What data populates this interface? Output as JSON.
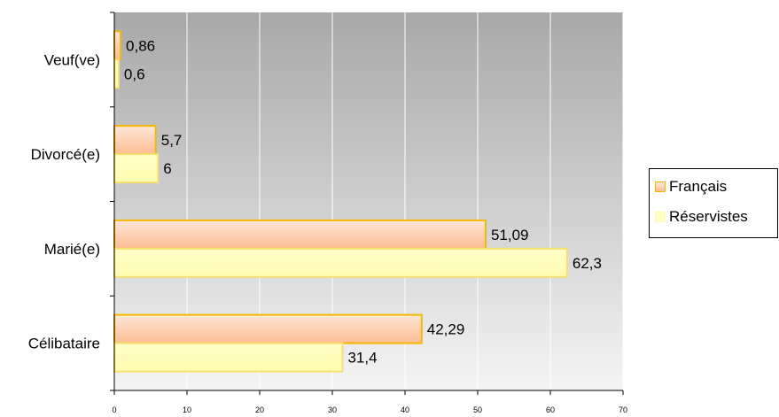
{
  "chart_data": {
    "type": "bar",
    "orientation": "horizontal",
    "categories": [
      "Célibataire",
      "Marié(e)",
      "Divorcé(e)",
      "Veuf(ve)"
    ],
    "series": [
      {
        "name": "Français",
        "values": [
          42.29,
          51.09,
          5.7,
          0.86
        ],
        "labels": [
          "42,29",
          "51,09",
          "5,7",
          "0,86"
        ]
      },
      {
        "name": "Réservistes",
        "values": [
          31.4,
          62.3,
          6,
          0.6
        ],
        "labels": [
          "31,4",
          "62,3",
          "6",
          "0,6"
        ]
      }
    ],
    "xlim": [
      0,
      70
    ],
    "xticks": [
      0,
      10,
      20,
      30,
      40,
      50,
      60,
      70
    ],
    "grid": true,
    "legend_position": "right",
    "colors": {
      "series1_fill_top": "#fde3d3",
      "series1_fill_bottom": "#fbbf96",
      "series1_stroke": "#f5b800",
      "series2_fill": "#ffffc0",
      "series2_stroke": "#f5e070",
      "plot_bg_top": "#a8a8a8",
      "plot_bg_bottom": "#f4f4f4",
      "gridline": "#ffffff"
    }
  }
}
